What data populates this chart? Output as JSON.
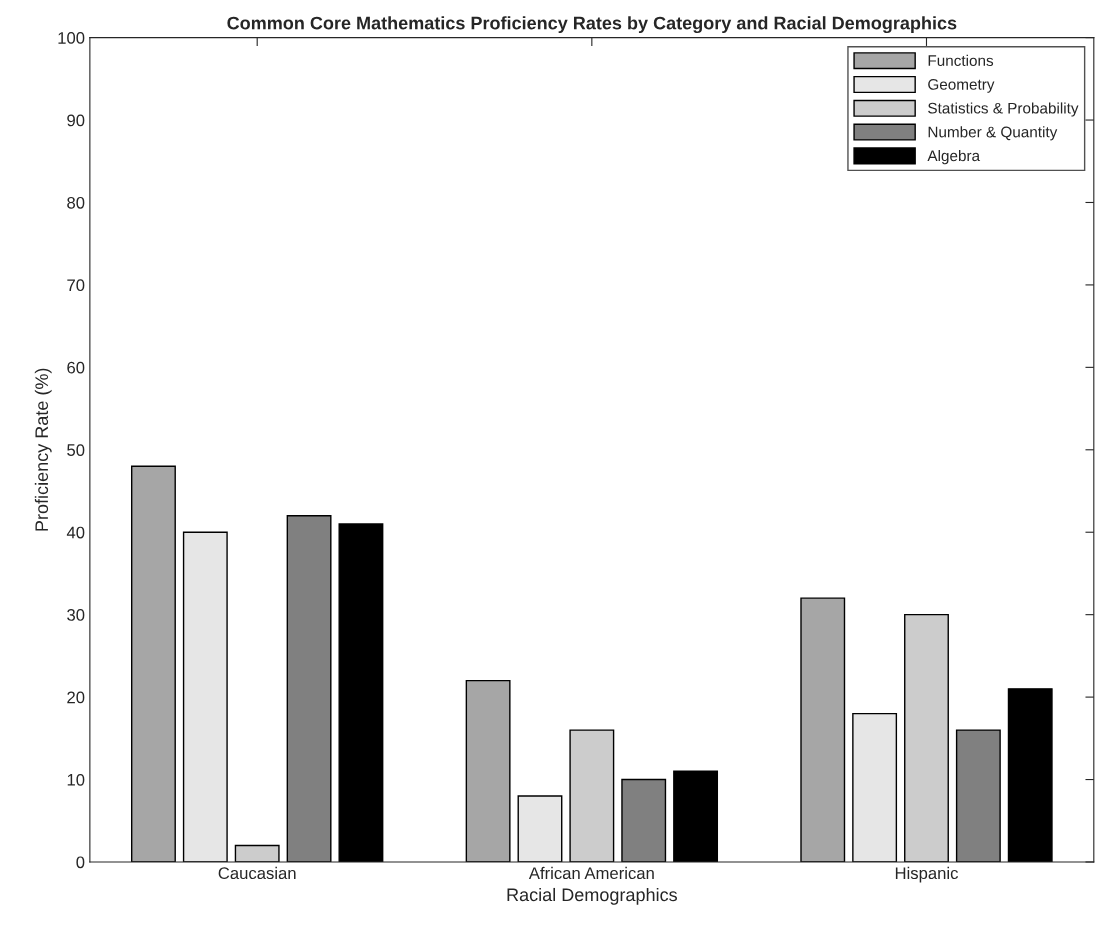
{
  "chart_data": {
    "type": "bar",
    "title": "Common Core Mathematics Proficiency Rates by Category and Racial Demographics",
    "xlabel": "Racial Demographics",
    "ylabel": "Proficiency Rate (%)",
    "categories": [
      "Caucasian",
      "African American",
      "Hispanic"
    ],
    "series": [
      {
        "name": "Functions",
        "color": "#a6a6a6",
        "values": [
          48,
          22,
          32
        ]
      },
      {
        "name": "Geometry",
        "color": "#e6e6e6",
        "values": [
          40,
          8,
          18
        ]
      },
      {
        "name": "Statistics & Probability",
        "color": "#cccccc",
        "values": [
          2,
          16,
          30
        ]
      },
      {
        "name": "Number & Quantity",
        "color": "#808080",
        "values": [
          42,
          10,
          16
        ]
      },
      {
        "name": "Algebra",
        "color": "#000000",
        "values": [
          41,
          11,
          21
        ]
      }
    ],
    "ylim": [
      0,
      100
    ],
    "yticks": [
      0,
      10,
      20,
      30,
      40,
      50,
      60,
      70,
      80,
      90,
      100
    ],
    "grid": false,
    "legend": "top right"
  }
}
